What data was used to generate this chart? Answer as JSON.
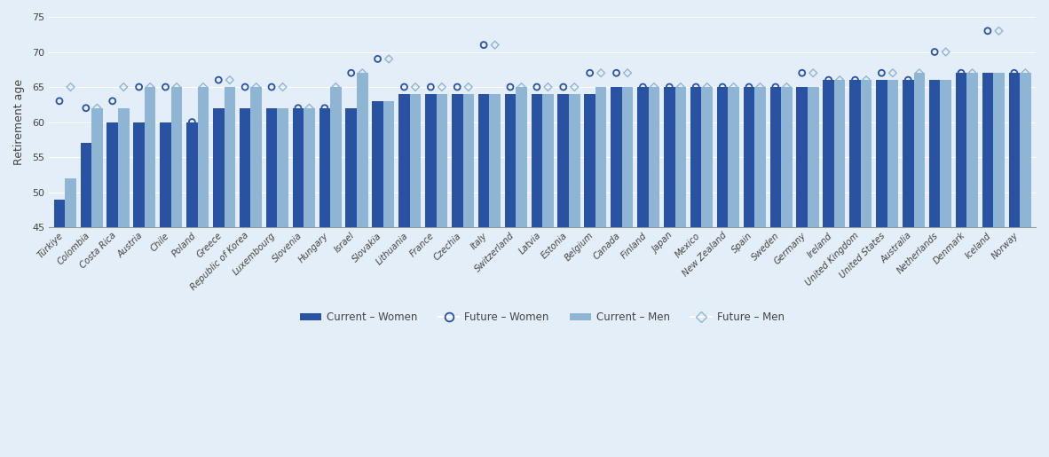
{
  "countries": [
    "Türkiye",
    "Colombia",
    "Costa Rica",
    "Austria",
    "Chile",
    "Poland",
    "Greece",
    "Republic of Korea",
    "Luxembourg",
    "Slovenia",
    "Hungary",
    "Israel",
    "Slovakia",
    "Lithuania",
    "France",
    "Czechia",
    "Italy",
    "Switzerland",
    "Latvia",
    "Estonia",
    "Belgium",
    "Canada",
    "Finland",
    "Japan",
    "Mexico",
    "New Zealand",
    "Spain",
    "Sweden",
    "Germany",
    "Ireland",
    "United Kingdom",
    "United States",
    "Australia",
    "Netherlands",
    "Denmark",
    "Iceland",
    "Norway"
  ],
  "current_women": [
    49,
    57,
    60,
    60,
    60,
    60,
    62,
    62,
    62,
    62,
    62,
    62,
    63,
    64,
    64,
    64,
    64,
    64,
    64,
    64,
    64,
    65,
    65,
    65,
    65,
    65,
    65,
    65,
    65,
    66,
    66,
    66,
    66,
    66,
    67,
    67,
    67
  ],
  "future_women": [
    63,
    62,
    63,
    65,
    65,
    60,
    66,
    65,
    65,
    62,
    62,
    67,
    69,
    65,
    65,
    65,
    71,
    65,
    65,
    65,
    67,
    67,
    65,
    65,
    65,
    65,
    65,
    65,
    67,
    66,
    66,
    67,
    66,
    70,
    67,
    73,
    67
  ],
  "current_men": [
    52,
    62,
    62,
    65,
    65,
    65,
    65,
    65,
    62,
    62,
    65,
    67,
    63,
    64,
    64,
    64,
    64,
    65,
    64,
    64,
    65,
    65,
    65,
    65,
    65,
    65,
    65,
    65,
    65,
    66,
    66,
    66,
    67,
    66,
    67,
    67,
    67
  ],
  "future_men": [
    65,
    62,
    65,
    65,
    65,
    65,
    66,
    65,
    65,
    62,
    65,
    67,
    69,
    65,
    65,
    65,
    71,
    65,
    65,
    65,
    67,
    67,
    65,
    65,
    65,
    65,
    65,
    65,
    67,
    66,
    66,
    67,
    67,
    70,
    67,
    73,
    67
  ],
  "color_women_bar": "#2952a3",
  "color_men_bar": "#8eb6d4",
  "color_future_women": "#2952a3",
  "color_future_men": "#8eb6d4",
  "background_color": "#e4eef8",
  "ylabel": "Retirement age",
  "ylim_min": 45,
  "ylim_max": 75,
  "yticks": [
    45,
    50,
    55,
    60,
    65,
    70,
    75
  ]
}
